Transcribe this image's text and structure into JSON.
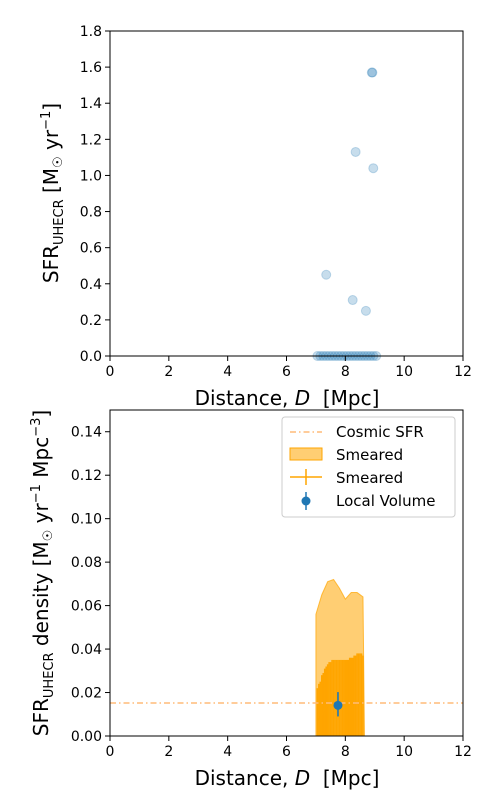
{
  "chart_data": [
    {
      "type": "scatter",
      "xlabel": "Distance, D  [Mpc]",
      "xlabel_parts": [
        "Distance, ",
        "D",
        "  [Mpc]"
      ],
      "ylabel": "SFR_UHECR [M☉ yr⁻¹]",
      "ylabel_parts": [
        "SFR",
        "UHECR",
        " [M",
        "☉",
        " yr",
        "−1",
        "]"
      ],
      "xlim": [
        0,
        12
      ],
      "ylim": [
        0,
        1.8
      ],
      "xticks": [
        "0",
        "2",
        "4",
        "6",
        "8",
        "10",
        "12"
      ],
      "yticks": [
        "0.0",
        "0.2",
        "0.4",
        "0.6",
        "0.8",
        "1.0",
        "1.2",
        "1.4",
        "1.6",
        "1.8"
      ],
      "grid": false,
      "point_color": "#1f77b4",
      "points": [
        {
          "x": 8.9,
          "y": 1.57
        },
        {
          "x": 8.92,
          "y": 1.57
        },
        {
          "x": 8.35,
          "y": 1.13
        },
        {
          "x": 8.95,
          "y": 1.04
        },
        {
          "x": 7.35,
          "y": 0.45
        },
        {
          "x": 8.25,
          "y": 0.31
        },
        {
          "x": 8.7,
          "y": 0.25
        },
        {
          "x": 7.05,
          "y": 0.0
        },
        {
          "x": 7.15,
          "y": 0.0
        },
        {
          "x": 7.25,
          "y": 0.0
        },
        {
          "x": 7.35,
          "y": 0.0
        },
        {
          "x": 7.45,
          "y": 0.0
        },
        {
          "x": 7.55,
          "y": 0.0
        },
        {
          "x": 7.65,
          "y": 0.0
        },
        {
          "x": 7.75,
          "y": 0.0
        },
        {
          "x": 7.85,
          "y": 0.0
        },
        {
          "x": 7.95,
          "y": 0.0
        },
        {
          "x": 8.05,
          "y": 0.0
        },
        {
          "x": 8.15,
          "y": 0.0
        },
        {
          "x": 8.25,
          "y": 0.0
        },
        {
          "x": 8.35,
          "y": 0.0
        },
        {
          "x": 8.45,
          "y": 0.0
        },
        {
          "x": 8.55,
          "y": 0.0
        },
        {
          "x": 8.65,
          "y": 0.0
        },
        {
          "x": 8.75,
          "y": 0.0
        },
        {
          "x": 8.85,
          "y": 0.0
        },
        {
          "x": 8.95,
          "y": 0.0
        },
        {
          "x": 9.05,
          "y": 0.0
        }
      ]
    },
    {
      "type": "line",
      "xlabel": "Distance, D  [Mpc]",
      "xlabel_parts": [
        "Distance, ",
        "D",
        "  [Mpc]"
      ],
      "ylabel": "SFR_UHECR density [M☉ yr⁻¹ Mpc⁻³]",
      "ylabel_parts": [
        "SFR",
        "UHECR",
        " density [M",
        "☉",
        " yr",
        "−1",
        " Mpc",
        "−3",
        "]"
      ],
      "xlim": [
        0,
        12
      ],
      "ylim": [
        0,
        0.15
      ],
      "xticks": [
        "0",
        "2",
        "4",
        "6",
        "8",
        "10",
        "12"
      ],
      "yticks": [
        "0.00",
        "0.02",
        "0.04",
        "0.06",
        "0.08",
        "0.10",
        "0.12",
        "0.14"
      ],
      "grid": false,
      "legend_position": "top-right",
      "cosmic_sfr": {
        "name": "Cosmic SFR",
        "y": 0.0152,
        "color": "#ffbb78"
      },
      "smeared_band": {
        "name": "Smeared",
        "color": "#ffa500",
        "upper_x": [
          7.0,
          7.0,
          7.2,
          7.4,
          7.6,
          7.8,
          8.0,
          8.2,
          8.4,
          8.6,
          8.65
        ],
        "upper_y": [
          0.0,
          0.056,
          0.065,
          0.071,
          0.072,
          0.068,
          0.063,
          0.066,
          0.066,
          0.064,
          0.0
        ]
      },
      "smeared_steps": {
        "name": "Smeared",
        "color": "#ffa500",
        "x": [
          7.05,
          7.1,
          7.15,
          7.2,
          7.25,
          7.3,
          7.35,
          7.4,
          7.45,
          7.5,
          7.55,
          7.6,
          7.65,
          7.7,
          7.75,
          7.8,
          7.85,
          7.9,
          7.95,
          8.0,
          8.05,
          8.1,
          8.15,
          8.2,
          8.25,
          8.3,
          8.35,
          8.4,
          8.45,
          8.5,
          8.55,
          8.6
        ],
        "upper": [
          0.022,
          0.024,
          0.025,
          0.028,
          0.029,
          0.031,
          0.032,
          0.033,
          0.034,
          0.034,
          0.035,
          0.035,
          0.035,
          0.035,
          0.035,
          0.035,
          0.035,
          0.035,
          0.035,
          0.035,
          0.035,
          0.035,
          0.036,
          0.036,
          0.036,
          0.037,
          0.037,
          0.038,
          0.038,
          0.038,
          0.038,
          0.037
        ],
        "center": [
          0.007,
          0.008,
          0.009,
          0.01,
          0.011,
          0.012,
          0.013,
          0.014,
          0.014,
          0.014,
          0.014,
          0.014,
          0.014,
          0.014,
          0.014,
          0.014,
          0.014,
          0.014,
          0.014,
          0.015,
          0.015,
          0.015,
          0.015,
          0.015,
          0.015,
          0.015,
          0.015,
          0.015,
          0.015,
          0.015,
          0.015,
          0.015
        ]
      },
      "local_volume": {
        "name": "Local Volume",
        "color": "#1f77b4",
        "x": 7.75,
        "y": 0.0141,
        "yerr_low": 0.0051,
        "yerr_high": 0.0061
      },
      "legend": [
        "Cosmic SFR",
        "Smeared",
        "Smeared",
        "Local Volume"
      ]
    }
  ]
}
